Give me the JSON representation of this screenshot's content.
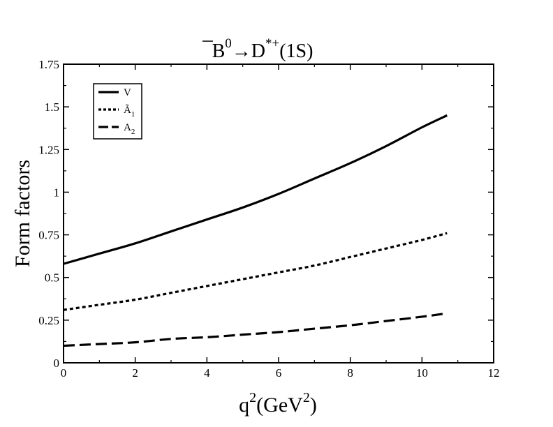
{
  "chart_data": {
    "type": "line",
    "title": "B0→D*+(1S)",
    "title_parts": {
      "particle": "B",
      "particle_sup": "0",
      "arrow": "→",
      "meson": "D",
      "meson_sup": "*+",
      "state": "(1S)"
    },
    "xlabel": "q2(GeV2)",
    "xlabel_parts": {
      "q": "q",
      "q_sup": "2",
      "unit_open": "(GeV",
      "unit_sup": "2",
      "unit_close": ")"
    },
    "ylabel": "Form factors",
    "xlim": [
      0,
      12
    ],
    "ylim": [
      0,
      1.75
    ],
    "xticks": [
      0,
      2,
      4,
      6,
      8,
      10,
      12
    ],
    "yticks": [
      0,
      0.25,
      0.5,
      0.75,
      1,
      1.25,
      1.5,
      1.75
    ],
    "xtick_labels": [
      "0",
      "2",
      "4",
      "6",
      "8",
      "10",
      "12"
    ],
    "ytick_labels": [
      "0",
      "0.25",
      "0.5",
      "0.75",
      "1",
      "1.25",
      "1.5",
      "1.75"
    ],
    "grid": false,
    "legend_position": "top-left",
    "x": [
      0,
      1,
      2,
      3,
      4,
      5,
      6,
      7,
      8,
      9,
      10,
      10.7
    ],
    "series": [
      {
        "name": "V",
        "legend_main": "V",
        "legend_sub": "",
        "style": "solid",
        "values": [
          0.58,
          0.64,
          0.7,
          0.77,
          0.84,
          0.91,
          0.99,
          1.08,
          1.17,
          1.27,
          1.38,
          1.45
        ]
      },
      {
        "name": "Ã1",
        "legend_main": "Ã",
        "legend_sub": "1",
        "style": "dotted",
        "values": [
          0.31,
          0.34,
          0.37,
          0.41,
          0.45,
          0.49,
          0.53,
          0.57,
          0.62,
          0.67,
          0.72,
          0.76
        ]
      },
      {
        "name": "A2",
        "legend_main": "A",
        "legend_sub": "2",
        "style": "dashed",
        "values": [
          0.1,
          0.11,
          0.12,
          0.14,
          0.15,
          0.165,
          0.18,
          0.2,
          0.22,
          0.245,
          0.27,
          0.29
        ]
      }
    ]
  }
}
